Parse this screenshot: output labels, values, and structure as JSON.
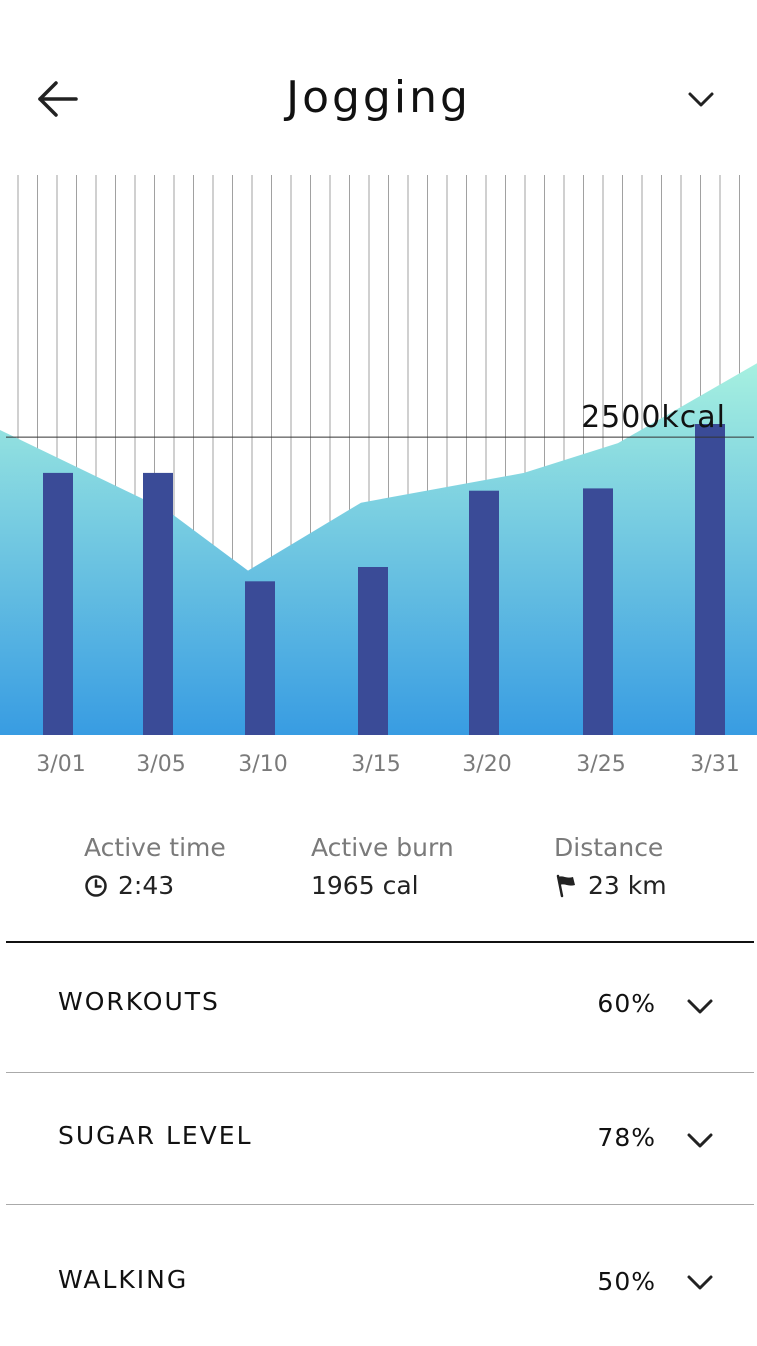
{
  "header": {
    "title": "Jogging",
    "back_icon": "arrow-left-icon",
    "menu_icon": "chevron-down-icon"
  },
  "chart_data": {
    "type": "bar",
    "categories": [
      "3/01",
      "3/05",
      "3/10",
      "3/15",
      "3/20",
      "3/25",
      "3/31"
    ],
    "series": [
      {
        "values": [
          2200,
          2200,
          1290,
          1410,
          2050,
          2070,
          2610
        ]
      }
    ],
    "area": {
      "x": [
        "3/01",
        "3/05",
        "3/10",
        "3/15",
        "3/20",
        "3/25",
        "3/31"
      ],
      "values": [
        2560,
        1880,
        1380,
        1950,
        2200,
        2450,
        3120
      ]
    },
    "reference_line": {
      "value": 2500,
      "label": "2500kcal"
    },
    "ylim": [
      0,
      4700
    ],
    "grid": true,
    "bar_color": "#3a4b97",
    "area_colors": [
      "#a6f0e0",
      "#389ce2"
    ]
  },
  "stats": [
    {
      "label": "Active time",
      "value": "2:43",
      "icon": "clock-icon"
    },
    {
      "label": "Active burn",
      "value": "1965 cal",
      "icon": ""
    },
    {
      "label": "Distance",
      "value": "23 km",
      "icon": "flag-icon"
    }
  ],
  "rows": [
    {
      "label": "WORKOUTS",
      "value": "60%"
    },
    {
      "label": "SUGAR LEVEL",
      "value": "78%"
    },
    {
      "label": "WALKING",
      "value": "50%"
    }
  ]
}
